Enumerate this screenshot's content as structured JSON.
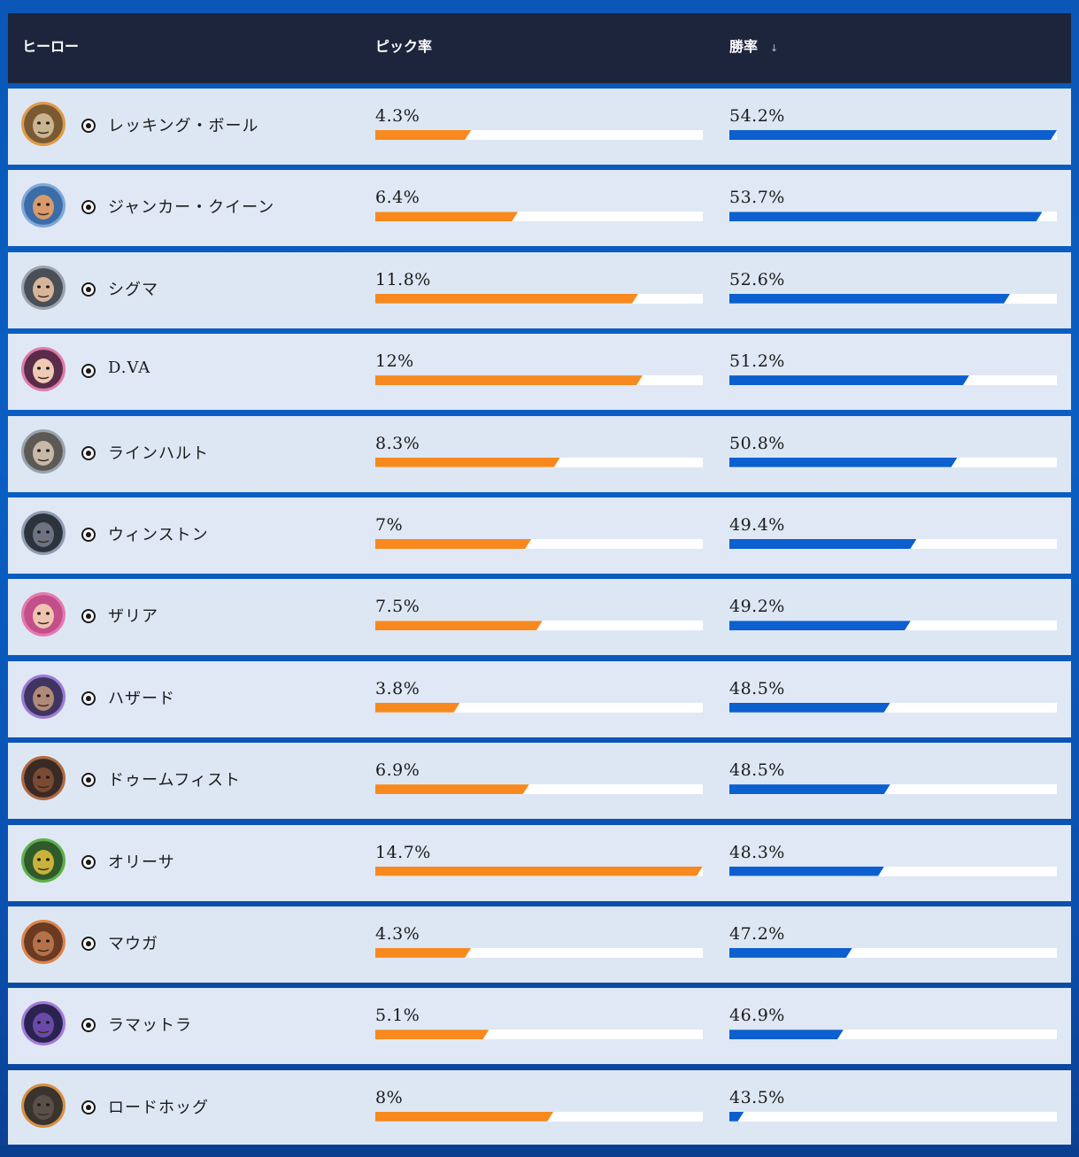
{
  "header": {
    "hero_label": "ヒーロー",
    "pick_label": "ピック率",
    "win_label": "勝率",
    "sort_icon": "arrow-down-icon"
  },
  "colors": {
    "pick_bar": "#f7891f",
    "win_bar": "#0b5fcf",
    "header_bg": "#1c253b"
  },
  "role_icon": "tank-role-icon",
  "heroes": [
    {
      "name": "レッキング・ボール",
      "pick": "4.3%",
      "pick_value": 4.3,
      "win": "54.2%",
      "win_value": 54.2,
      "ring": "#e09a45",
      "skin": "#c9b48f",
      "bg": "#7a5a33"
    },
    {
      "name": "ジャンカー・クイーン",
      "pick": "6.4%",
      "pick_value": 6.4,
      "win": "53.7%",
      "win_value": 53.7,
      "ring": "#7fa7d8",
      "skin": "#d99a6c",
      "bg": "#3b6ea8"
    },
    {
      "name": "シグマ",
      "pick": "11.8%",
      "pick_value": 11.8,
      "win": "52.6%",
      "win_value": 52.6,
      "ring": "#9aa3ad",
      "skin": "#d8b49a",
      "bg": "#4a4f57"
    },
    {
      "name": "D.VA",
      "pick": "12%",
      "pick_value": 12,
      "win": "51.2%",
      "win_value": 51.2,
      "ring": "#e07aa8",
      "skin": "#f0c9b5",
      "bg": "#5a2c4a"
    },
    {
      "name": "ラインハルト",
      "pick": "8.3%",
      "pick_value": 8.3,
      "win": "50.8%",
      "win_value": 50.8,
      "ring": "#9aa3ad",
      "skin": "#c7b9a6",
      "bg": "#5d5a55"
    },
    {
      "name": "ウィンストン",
      "pick": "7%",
      "pick_value": 7,
      "win": "49.4%",
      "win_value": 49.4,
      "ring": "#8f9bb0",
      "skin": "#6d7380",
      "bg": "#2d333d"
    },
    {
      "name": "ザリア",
      "pick": "7.5%",
      "pick_value": 7.5,
      "win": "49.2%",
      "win_value": 49.2,
      "ring": "#e778b0",
      "skin": "#f0c3b0",
      "bg": "#c24f8a"
    },
    {
      "name": "ハザード",
      "pick": "3.8%",
      "pick_value": 3.8,
      "win": "48.5%",
      "win_value": 48.5,
      "ring": "#9c7ad8",
      "skin": "#b08a78",
      "bg": "#3f3560"
    },
    {
      "name": "ドゥームフィスト",
      "pick": "6.9%",
      "pick_value": 6.9,
      "win": "48.5%",
      "win_value": 48.5,
      "ring": "#b0683f",
      "skin": "#7a4a33",
      "bg": "#3a2a25"
    },
    {
      "name": "オリーサ",
      "pick": "14.7%",
      "pick_value": 14.7,
      "win": "48.3%",
      "win_value": 48.3,
      "ring": "#5fb04a",
      "skin": "#c9b23a",
      "bg": "#2f5a2a"
    },
    {
      "name": "マウガ",
      "pick": "4.3%",
      "pick_value": 4.3,
      "win": "47.2%",
      "win_value": 47.2,
      "ring": "#e0834a",
      "skin": "#b57248",
      "bg": "#6a3a22"
    },
    {
      "name": "ラマットラ",
      "pick": "5.1%",
      "pick_value": 5.1,
      "win": "46.9%",
      "win_value": 46.9,
      "ring": "#a479d8",
      "skin": "#6a4aa8",
      "bg": "#2a2250"
    },
    {
      "name": "ロードホッグ",
      "pick": "8%",
      "pick_value": 8,
      "win": "43.5%",
      "win_value": 43.5,
      "ring": "#d8903f",
      "skin": "#5a5048",
      "bg": "#3a332e"
    }
  ]
}
